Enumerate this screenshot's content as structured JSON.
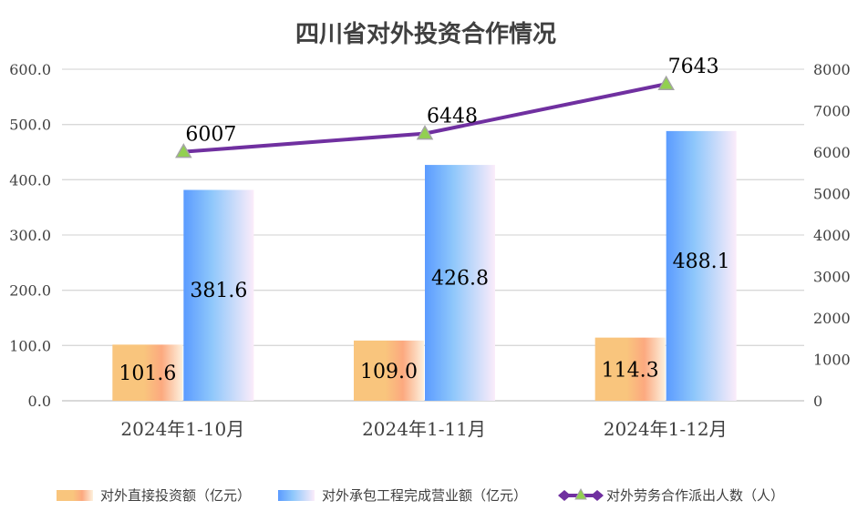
{
  "chart_data": {
    "type": "bar",
    "title": "四川省对外投资合作情况",
    "categories": [
      "2024年1-10月",
      "2024年1-11月",
      "2024年1-12月"
    ],
    "series": [
      {
        "name": "对外直接投资额（亿元）",
        "axis": "left",
        "kind": "bar",
        "values": [
          101.6,
          109.0,
          114.3
        ],
        "labels": [
          "101.6",
          "109.0",
          "114.3"
        ]
      },
      {
        "name": "对外承包工程完成营业额（亿元）",
        "axis": "left",
        "kind": "bar",
        "values": [
          381.6,
          426.8,
          488.1
        ],
        "labels": [
          "381.6",
          "426.8",
          "488.1"
        ]
      },
      {
        "name": "对外劳务合作派出人数（人）",
        "axis": "right",
        "kind": "line",
        "values": [
          6007,
          6448,
          7643
        ],
        "labels": [
          "6007",
          "6448",
          "7643"
        ]
      }
    ],
    "ylim_left": [
      0,
      600
    ],
    "ylim_right": [
      0,
      8000
    ],
    "left_ticks": [
      "0.0",
      "100.0",
      "200.0",
      "300.0",
      "400.0",
      "500.0",
      "600.0"
    ],
    "left_tick_values": [
      0,
      100,
      200,
      300,
      400,
      500,
      600
    ],
    "right_ticks": [
      "0",
      "1000",
      "2000",
      "3000",
      "4000",
      "5000",
      "6000",
      "7000",
      "8000"
    ],
    "right_tick_values": [
      0,
      1000,
      2000,
      3000,
      4000,
      5000,
      6000,
      7000,
      8000
    ],
    "grid": true,
    "legend_position": "bottom",
    "xlabel": "",
    "ylabel": ""
  },
  "colors": {
    "bar1_start": "#f9c57d",
    "bar1_mid": "#fca97f",
    "bar1_end": "#fdf1de",
    "bar2_start": "#5b9bff",
    "bar2_mid": "#8ec7fb",
    "bar2_end": "#fbecfa",
    "line": "#7030a0",
    "marker_fill": "#92d050",
    "marker_stroke": "#a5a5a5",
    "grid": "#d9d9d9",
    "text": "#404040"
  }
}
